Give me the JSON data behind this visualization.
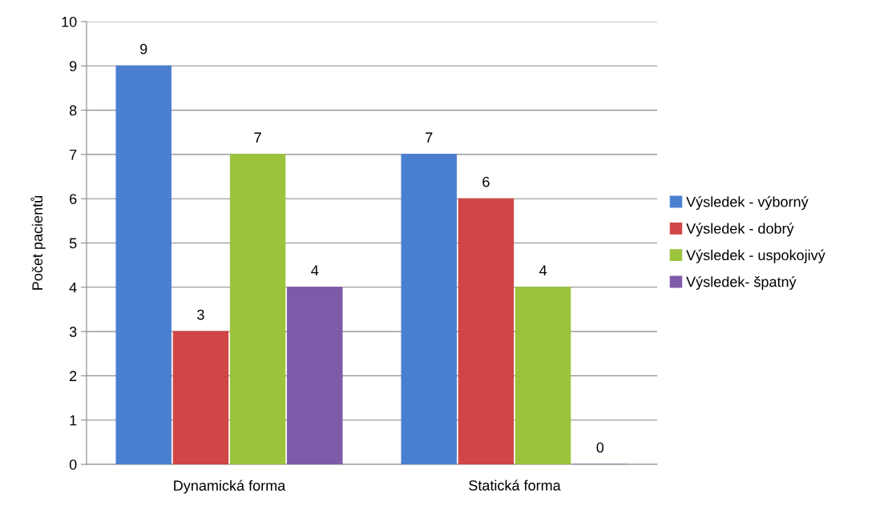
{
  "chart_data": {
    "type": "bar",
    "ylabel": "Počet pacientů",
    "categories": [
      "Dynamická forma",
      "Statická forma"
    ],
    "series": [
      {
        "name": "Výsledek - výborný",
        "color": "#4a7fd0",
        "values": [
          9,
          7
        ]
      },
      {
        "name": "Výsledek - dobrý",
        "color": "#d04545",
        "values": [
          3,
          6
        ]
      },
      {
        "name": "Výsledek - uspokojivý",
        "color": "#9bc33c",
        "values": [
          7,
          4
        ]
      },
      {
        "name": "Výsledek- špatný",
        "color": "#7f5aa8",
        "values": [
          4,
          0
        ]
      }
    ],
    "ylim": [
      0,
      10
    ],
    "yticks": [
      0,
      1,
      2,
      3,
      4,
      5,
      6,
      7,
      8,
      9,
      10
    ],
    "grid": "y",
    "legend": "right",
    "data_labels": true
  }
}
